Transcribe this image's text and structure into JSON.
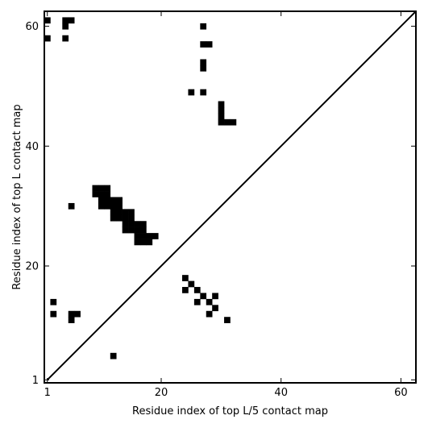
{
  "chart_data": {
    "type": "heatmap",
    "title": "",
    "xlabel": "Residue index of top L/5 contact map",
    "ylabel": "Residue index of top L contact map",
    "xlim": [
      0.5,
      62.5
    ],
    "ylim": [
      0.5,
      62.5
    ],
    "x_ticks": [
      {
        "value": 1,
        "label": "1"
      },
      {
        "value": 20,
        "label": "20"
      },
      {
        "value": 40,
        "label": "40"
      },
      {
        "value": 60,
        "label": "60"
      }
    ],
    "y_ticks": [
      {
        "value": 1,
        "label": "1"
      },
      {
        "value": 20,
        "label": "20"
      },
      {
        "value": 40,
        "label": "40"
      },
      {
        "value": 60,
        "label": "60"
      }
    ],
    "diagonal": true,
    "grid": false,
    "colors": {
      "contact": "#000000",
      "background": "#ffffff",
      "axis": "#000000"
    },
    "contacts_top_l": [
      [
        1,
        61
      ],
      [
        4,
        61
      ],
      [
        5,
        61
      ],
      [
        4,
        60
      ],
      [
        1,
        58
      ],
      [
        4,
        58
      ],
      [
        27,
        60
      ],
      [
        27,
        57
      ],
      [
        28,
        57
      ],
      [
        27,
        54
      ],
      [
        27,
        53
      ],
      [
        25,
        49
      ],
      [
        27,
        49
      ],
      [
        30,
        47
      ],
      [
        30,
        46
      ],
      [
        30,
        45
      ],
      [
        30,
        44
      ],
      [
        31,
        44
      ],
      [
        32,
        44
      ],
      [
        9,
        33
      ],
      [
        10,
        33
      ],
      [
        11,
        33
      ],
      [
        9,
        32
      ],
      [
        10,
        32
      ],
      [
        11,
        32
      ],
      [
        10,
        31
      ],
      [
        11,
        31
      ],
      [
        12,
        31
      ],
      [
        13,
        31
      ],
      [
        10,
        30
      ],
      [
        11,
        30
      ],
      [
        12,
        30
      ],
      [
        13,
        30
      ],
      [
        5,
        30
      ],
      [
        12,
        29
      ],
      [
        13,
        29
      ],
      [
        14,
        29
      ],
      [
        15,
        29
      ],
      [
        12,
        28
      ],
      [
        13,
        28
      ],
      [
        14,
        28
      ],
      [
        15,
        28
      ],
      [
        14,
        27
      ],
      [
        15,
        27
      ],
      [
        16,
        27
      ],
      [
        17,
        27
      ],
      [
        14,
        26
      ],
      [
        15,
        26
      ],
      [
        16,
        26
      ],
      [
        17,
        26
      ],
      [
        16,
        25
      ],
      [
        17,
        25
      ],
      [
        18,
        25
      ],
      [
        19,
        25
      ],
      [
        16,
        24
      ],
      [
        17,
        24
      ],
      [
        18,
        24
      ]
    ],
    "contacts_top_l5": [
      [
        24,
        18
      ],
      [
        25,
        17
      ],
      [
        24,
        16
      ],
      [
        26,
        16
      ],
      [
        27,
        15
      ],
      [
        29,
        15
      ],
      [
        26,
        14
      ],
      [
        28,
        14
      ],
      [
        29,
        13
      ],
      [
        28,
        12
      ],
      [
        31,
        11
      ],
      [
        2,
        14
      ],
      [
        2,
        12
      ],
      [
        5,
        12
      ],
      [
        6,
        12
      ],
      [
        5,
        11
      ],
      [
        12,
        5
      ]
    ]
  }
}
